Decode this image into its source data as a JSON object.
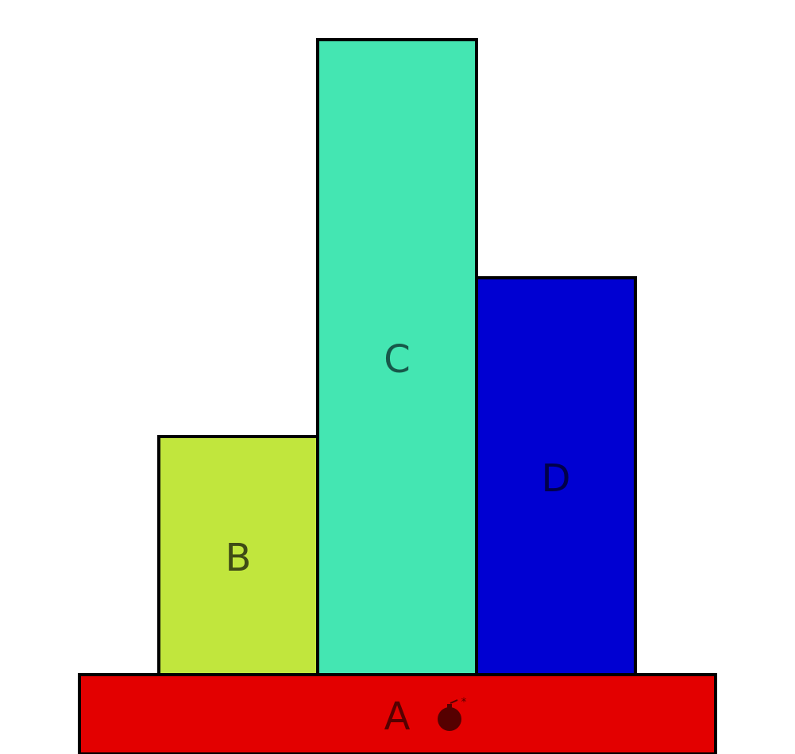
{
  "blocks": [
    {
      "id": "A",
      "label": "A",
      "color": "#e30000",
      "label_color": "#560000",
      "has_bomb": true
    },
    {
      "id": "B",
      "label": "B",
      "color": "#c1e63d",
      "label_color": "#3f4b16"
    },
    {
      "id": "C",
      "label": "C",
      "color": "#44e6b2",
      "label_color": "#17584a"
    },
    {
      "id": "D",
      "label": "D",
      "color": "#0000d2",
      "label_color": "#00004a"
    }
  ],
  "bomb": {
    "icon": "bomb-icon",
    "color": "#560000"
  }
}
